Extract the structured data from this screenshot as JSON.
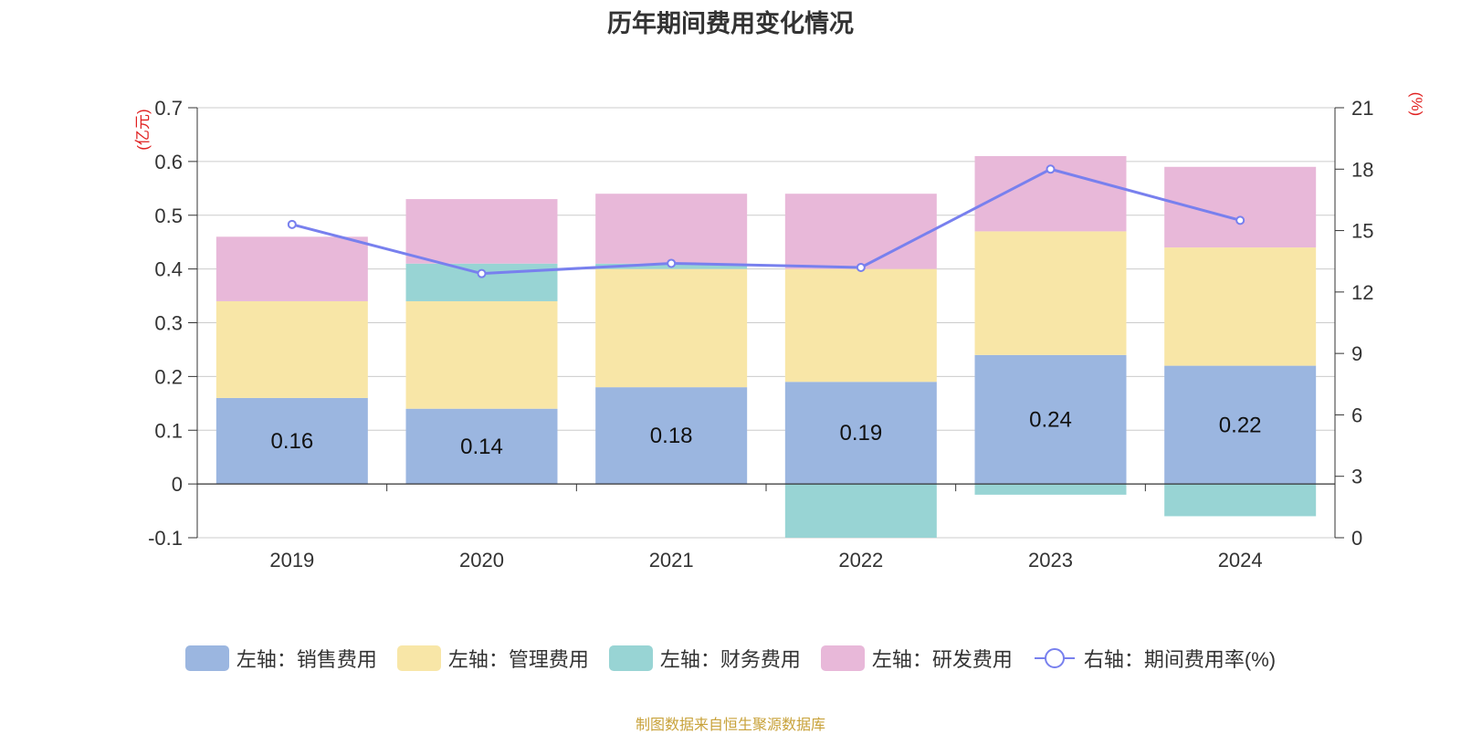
{
  "title": "历年期间费用变化情况",
  "source": "制图数据来自恒生聚源数据库",
  "chart_data": {
    "type": "bar",
    "stacked": true,
    "categories": [
      "2019",
      "2020",
      "2021",
      "2022",
      "2023",
      "2024"
    ],
    "left_axis": {
      "unit": "(亿元)",
      "ylim": [
        -0.1,
        0.7
      ],
      "ticks": [
        -0.1,
        0,
        0.1,
        0.2,
        0.3,
        0.4,
        0.5,
        0.6,
        0.7
      ],
      "tick_labels": [
        "-0.1",
        "0",
        "0.1",
        "0.2",
        "0.3",
        "0.4",
        "0.5",
        "0.6",
        "0.7"
      ]
    },
    "right_axis": {
      "unit": "(%)",
      "ylim": [
        0,
        21
      ],
      "ticks": [
        0,
        3,
        6,
        9,
        12,
        15,
        18,
        21
      ],
      "tick_labels": [
        "0",
        "3",
        "6",
        "9",
        "12",
        "15",
        "18",
        "21"
      ]
    },
    "series": [
      {
        "name": "左轴：销售费用",
        "type": "bar",
        "color": "#9bb6e0",
        "values": [
          0.16,
          0.14,
          0.18,
          0.19,
          0.24,
          0.22
        ],
        "labels": [
          "0.16",
          "0.14",
          "0.18",
          "0.19",
          "0.24",
          "0.22"
        ]
      },
      {
        "name": "左轴：管理费用",
        "type": "bar",
        "color": "#f8e6a7",
        "values": [
          0.18,
          0.2,
          0.22,
          0.21,
          0.23,
          0.22
        ]
      },
      {
        "name": "左轴：财务费用",
        "type": "bar",
        "color": "#98d4d4",
        "values": [
          0.0,
          0.07,
          0.01,
          -0.1,
          -0.02,
          -0.06
        ]
      },
      {
        "name": "左轴：研发费用",
        "type": "bar",
        "color": "#e8b8d9",
        "values": [
          0.12,
          0.12,
          0.13,
          0.14,
          0.14,
          0.15
        ]
      },
      {
        "name": "右轴：期间费用率(%)",
        "type": "line",
        "axis": "right",
        "color": "#7880ee",
        "values": [
          15.3,
          12.9,
          13.4,
          13.2,
          18.0,
          15.5
        ]
      }
    ],
    "grid": true,
    "legend_position": "bottom"
  }
}
